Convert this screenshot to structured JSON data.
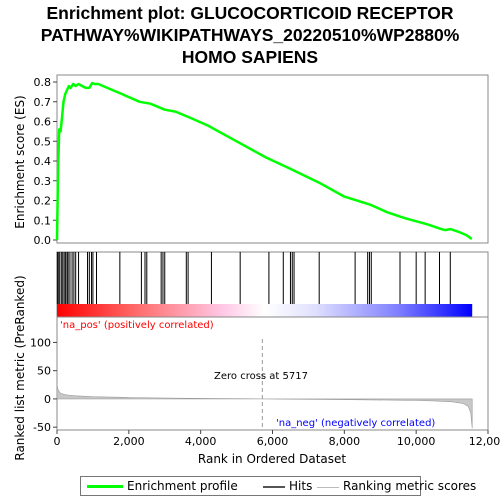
{
  "chart_data": {
    "type": "line",
    "title_lines": [
      "Enrichment plot: GLUCOCORTICOID RECEPTOR",
      "PATHWAY%WIKIPATHWAYS_20220510%WP2880%",
      "HOMO SAPIENS"
    ],
    "es_panel": {
      "ylabel": "Enrichment score (ES)",
      "ylim": [
        0,
        0.8
      ],
      "yticks": [
        "0.0",
        "0.1",
        "0.2",
        "0.3",
        "0.4",
        "0.5",
        "0.6",
        "0.7",
        "0.8"
      ],
      "series": [
        {
          "name": "Enrichment profile",
          "color": "#00ff00",
          "x": [
            0,
            30,
            60,
            100,
            140,
            180,
            230,
            280,
            330,
            380,
            450,
            520,
            600,
            700,
            800,
            900,
            980,
            1050,
            1150,
            1400,
            1800,
            2300,
            2600,
            3000,
            3300,
            3700,
            4200,
            5000,
            5800,
            6500,
            7300,
            8000,
            8700,
            9200,
            9700,
            10300,
            10700,
            10800,
            10950,
            11200,
            11400,
            11550
          ],
          "values": [
            0.0,
            0.36,
            0.56,
            0.55,
            0.62,
            0.7,
            0.74,
            0.76,
            0.78,
            0.77,
            0.79,
            0.78,
            0.79,
            0.78,
            0.77,
            0.77,
            0.795,
            0.79,
            0.79,
            0.77,
            0.74,
            0.7,
            0.69,
            0.66,
            0.65,
            0.62,
            0.58,
            0.5,
            0.42,
            0.36,
            0.29,
            0.22,
            0.18,
            0.14,
            0.11,
            0.08,
            0.055,
            0.05,
            0.055,
            0.04,
            0.025,
            0.005
          ]
        }
      ]
    },
    "hits": {
      "positions": [
        10,
        35,
        75,
        120,
        160,
        200,
        240,
        280,
        310,
        360,
        420,
        470,
        520,
        600,
        850,
        900,
        960,
        1000,
        1100,
        1750,
        2350,
        2450,
        2500,
        2900,
        2950,
        3000,
        3600,
        3650,
        4300,
        5100,
        5900,
        6300,
        6500,
        6550,
        6600,
        7300,
        8300,
        8650,
        8700,
        8750,
        9550,
        10000,
        10250,
        10650,
        10950
      ],
      "color": "#000000"
    },
    "metric_panel": {
      "ylabel": "Ranked list metric (PreRanked)",
      "ylim": [
        -55,
        145
      ],
      "yticks": [
        -50,
        0,
        50,
        100
      ],
      "x": [
        0,
        20,
        50,
        100,
        200,
        300,
        500,
        1000,
        2000,
        3000,
        4000,
        5000,
        5717,
        6500,
        7500,
        8500,
        9500,
        10000,
        10500,
        11000,
        11300,
        11450,
        11520,
        11560
      ],
      "values": [
        28,
        18,
        14,
        10,
        8,
        7,
        5.5,
        4,
        2.5,
        1.6,
        1.0,
        0.4,
        0,
        -0.5,
        -1.0,
        -1.6,
        -2.3,
        -2.8,
        -3.5,
        -5,
        -8,
        -13,
        -25,
        -52
      ],
      "fill_color": "#c8c8c8",
      "zero_cross_label": "Zero cross at 5717",
      "zero_cross": 5717,
      "pos_label": "'na_pos' (positively correlated)",
      "neg_label": "'na_neg' (negatively correlated)"
    },
    "xaxis": {
      "label": "Rank in Ordered Dataset",
      "xlim": [
        0,
        12000
      ],
      "ticks": [
        "0",
        "2,000",
        "4,000",
        "6,000",
        "8,000",
        "10,000",
        "12,000"
      ],
      "n_genes": 11560
    },
    "legend": {
      "items": [
        {
          "label": "Enrichment profile",
          "color": "#00ff00"
        },
        {
          "label": "Hits",
          "color": "#000000"
        },
        {
          "label": "Ranking metric scores",
          "color": "#c8c8c8"
        }
      ]
    },
    "colors": {
      "pos": "#ff0000",
      "mid": "#ffffff",
      "neg": "#0000ff",
      "pos_label": "#ff0000",
      "neg_label": "#0000ff"
    }
  }
}
